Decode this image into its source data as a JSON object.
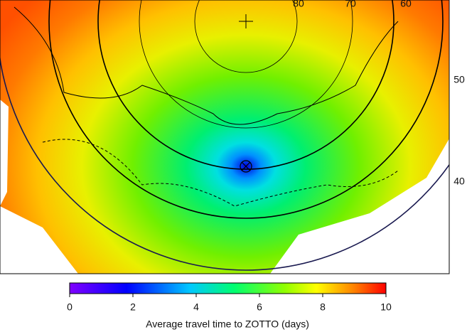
{
  "map": {
    "latitude_labels": [
      "80",
      "70",
      "60",
      "50",
      "40"
    ],
    "colorbar": {
      "label": "Average travel time to ZOTTO (days)",
      "range": [
        0,
        10
      ],
      "ticks": [
        0,
        2,
        4,
        6,
        8,
        10
      ]
    }
  }
}
